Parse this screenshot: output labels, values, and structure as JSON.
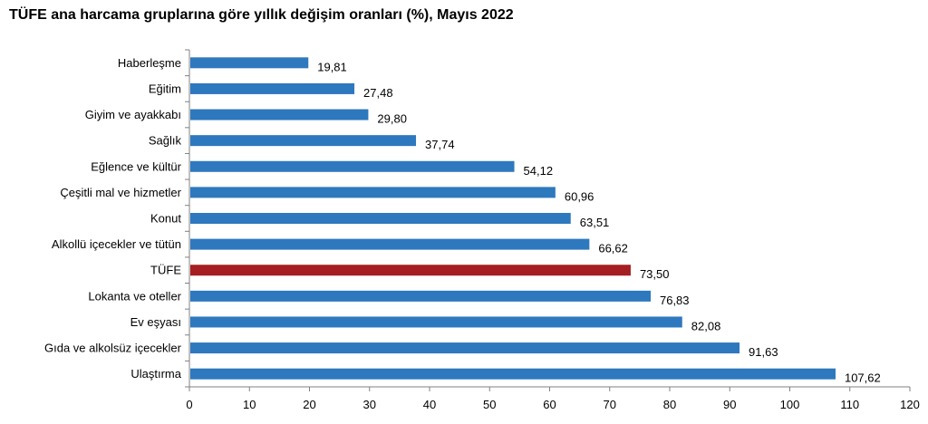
{
  "title": "TÜFE ana harcama gruplarına göre yıllık değişim oranları (%), Mayıs 2022",
  "chart_data": {
    "type": "bar",
    "orientation": "horizontal",
    "title": "TÜFE ana harcama gruplarına göre yıllık değişim oranları (%), Mayıs 2022",
    "xlabel": "",
    "ylabel": "",
    "xlim": [
      0,
      120
    ],
    "x_ticks": [
      0,
      10,
      20,
      30,
      40,
      50,
      60,
      70,
      80,
      90,
      100,
      110,
      120
    ],
    "grid": false,
    "legend": "none",
    "categories": [
      "Haberleşme",
      "Eğitim",
      "Giyim ve ayakkabı",
      "Sağlık",
      "Eğlence ve kültür",
      "Çeşitli mal ve hizmetler",
      "Konut",
      "Alkollü içecekler ve tütün",
      "TÜFE",
      "Lokanta ve oteller",
      "Ev eşyası",
      "Gıda ve alkolsüz içecekler",
      "Ulaştırma"
    ],
    "values": [
      19.81,
      27.48,
      29.8,
      37.74,
      54.12,
      60.96,
      63.51,
      66.62,
      73.5,
      76.83,
      82.08,
      91.63,
      107.62
    ],
    "value_labels": [
      "19,81",
      "27,48",
      "29,80",
      "37,74",
      "54,12",
      "60,96",
      "63,51",
      "66,62",
      "73,50",
      "76,83",
      "82,08",
      "91,63",
      "107,62"
    ],
    "highlight_category": "TÜFE",
    "colors": {
      "bar": "#2e78be",
      "highlight": "#a51e22",
      "axis": "#808080"
    }
  }
}
